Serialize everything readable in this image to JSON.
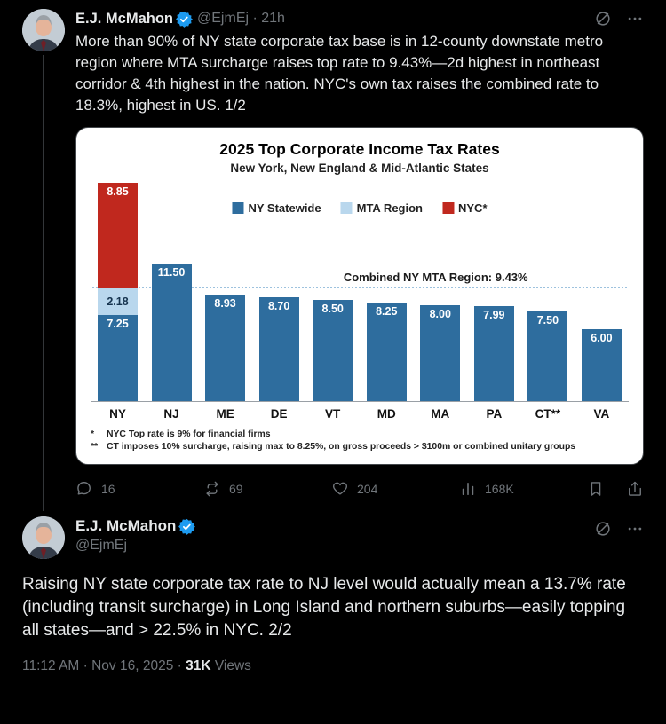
{
  "tweet1": {
    "name": "E.J. McMahon",
    "handle": "@EjmEj",
    "separator": "·",
    "time": "21h",
    "handle_meta": "@EjmEj · 21h",
    "text": "More than 90% of NY state corporate tax base is in 12-county downstate metro region where MTA surcharge raises top rate to 9.43%—2d highest in northeast corridor & 4th highest in the nation. NYC's own tax raises the combined rate to 18.3%, highest in US.  1/2",
    "stats": {
      "replies": "16",
      "reposts": "69",
      "likes": "204",
      "views": "168K"
    }
  },
  "chart_data": {
    "type": "bar",
    "title": "2025 Top Corporate Income Tax Rates",
    "subtitle": "New York, New England & Mid-Atlantic States",
    "legend": [
      {
        "label": "NY Statewide",
        "color": "#2e6d9e",
        "label_color": "#ffffff"
      },
      {
        "label": "MTA Region",
        "color": "#b9d7ed",
        "label_color": "#16344f"
      },
      {
        "label": "NYC*",
        "color": "#c0281e",
        "label_color": "#ffffff"
      }
    ],
    "categories": [
      "NY",
      "NJ",
      "ME",
      "DE",
      "VT",
      "MD",
      "MA",
      "PA",
      "CT**",
      "VA"
    ],
    "series": [
      {
        "name": "NY Statewide",
        "values": [
          7.25,
          11.5,
          8.93,
          8.7,
          8.5,
          8.25,
          8.0,
          7.99,
          7.5,
          6.0
        ]
      },
      {
        "name": "MTA Region",
        "values": [
          2.18,
          0,
          0,
          0,
          0,
          0,
          0,
          0,
          0,
          0
        ]
      },
      {
        "name": "NYC*",
        "values": [
          8.85,
          0,
          0,
          0,
          0,
          0,
          0,
          0,
          0,
          0
        ]
      }
    ],
    "annotation": "Combined NY MTA Region: 9.43%",
    "annotation_value": 9.43,
    "footnotes": [
      {
        "mark": "*",
        "text": "NYC Top rate is 9% for financial firms"
      },
      {
        "mark": "**",
        "text": "CT imposes 10% surcharge, raising max to 8.25%, on gross proceeds > $100m or combined unitary groups"
      }
    ],
    "ylim": [
      0,
      18.6
    ],
    "grid": false,
    "legend_position": "top-center"
  },
  "tweet2": {
    "name": "E.J. McMahon",
    "handle": "@EjmEj",
    "text": "Raising NY state corporate tax rate to NJ level would actually mean a 13.7% rate (including transit surcharge) in Long Island and northern suburbs—easily topping all states—and > 22.5% in NYC. 2/2",
    "timestamp_prefix": "11:12 AM · Nov 16, 2025 · ",
    "views_count": "31K",
    "views_label": " Views"
  }
}
